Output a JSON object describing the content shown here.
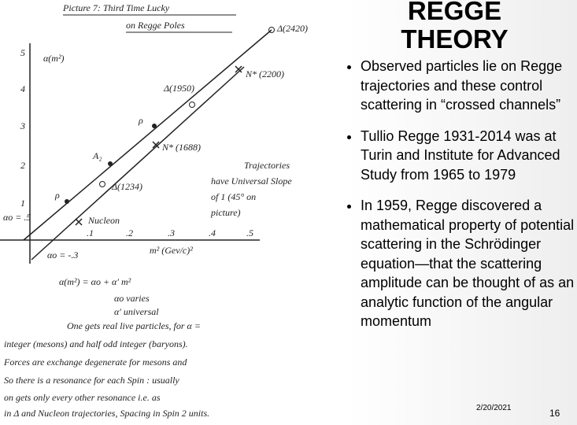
{
  "slide": {
    "title_lines": [
      "REGGE",
      "THEORY"
    ],
    "bullets": [
      "Observed particles lie on Regge trajectories and these control scattering in “crossed channels”",
      "Tullio Regge 1931-2014 was at Turin and Institute for Advanced Study from 1965 to 1979",
      "In 1959, Regge discovered a mathematical property of potential scattering in the Schrödinger equation—that the scattering amplitude can be thought of as an analytic function of the angular momentum"
    ],
    "date": "2/20/2021",
    "page_number": "16"
  },
  "sketch": {
    "title_lines": [
      "Picture 7: Third Time Lucky",
      "on Regge Poles"
    ],
    "y_axis_label": "α(m²)",
    "x_axis_label": "m² (Gev/c)²",
    "y_ticks": [
      "5",
      "4",
      "3",
      "2",
      "1"
    ],
    "x_ticks": [
      ".1",
      ".2",
      ".3",
      ".4",
      ".5"
    ],
    "intercept_labels": [
      "αo = .5",
      "αo = -.3"
    ],
    "particles": [
      "Δ(2420)",
      "N* (2200)",
      "Δ(1950)",
      "ρ",
      "N* (1688)",
      "A₂",
      "Δ(1234)",
      "ρ",
      "Nucleon"
    ],
    "slope_note": [
      "Trajectories",
      "have Universal Slope",
      "of 1 (45° on",
      "picture)"
    ],
    "equations": [
      "α(m²) = αo + α′ m²",
      "αo varies",
      "α′ universal"
    ],
    "notes": [
      "One gets real live particles, for α =",
      "integer (mesons) and half odd integer (baryons).",
      "Forces are exchange degenerate for mesons and",
      "So there is a resonance for each Spin : usually",
      "on gets only every other resonance i.e. as",
      "in Δ and Nucleon trajectories, Spacing in Spin 2 units."
    ]
  }
}
